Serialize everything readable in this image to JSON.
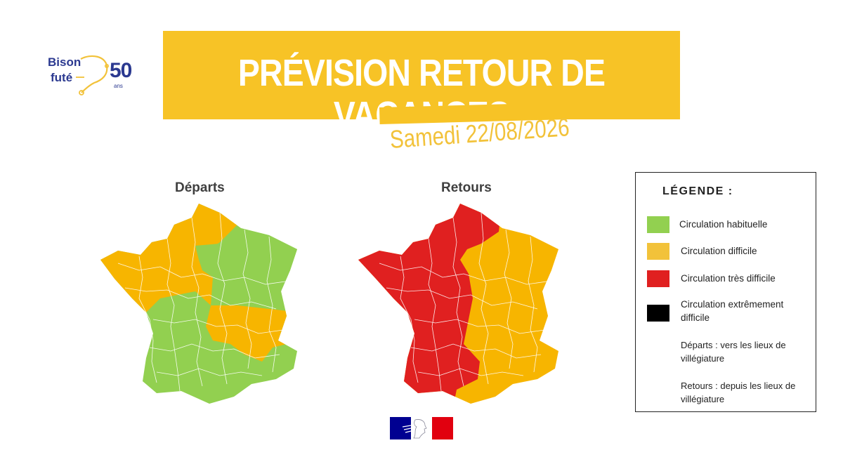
{
  "logo": {
    "line1": "Bison",
    "line2": "futé",
    "number": "50",
    "suffix": "ans"
  },
  "banner": {
    "title": "PRÉVISION RETOUR DE VACANCES",
    "date": "Samedi 22/08/2026"
  },
  "maps": [
    {
      "title": "Départs",
      "fills": {
        "west": "#f7b500",
        "southwest": "#92d050",
        "northeast": "#92d050",
        "southeast": "#f7b500",
        "center_island": "#92d050"
      }
    },
    {
      "title": "Retours",
      "fills": {
        "west": "#e02020",
        "east": "#f7b500"
      }
    }
  ],
  "legend": {
    "title": "LÉGENDE :",
    "items": [
      {
        "label": "Circulation habituelle",
        "color": "#92d050"
      },
      {
        "label": "Circulation difficile",
        "color": "#f2c23a"
      },
      {
        "label": "Circulation très difficile",
        "color": "#e02020"
      },
      {
        "label": "Circulation extrêmement difficile",
        "color": "#000000"
      }
    ],
    "notes": [
      "Départs : vers les lieux de villégiature",
      "Retours : depuis les lieux de villégiature"
    ]
  },
  "colors": {
    "brand_navy": "#2b3990",
    "banner_yellow": "#f7c326"
  }
}
